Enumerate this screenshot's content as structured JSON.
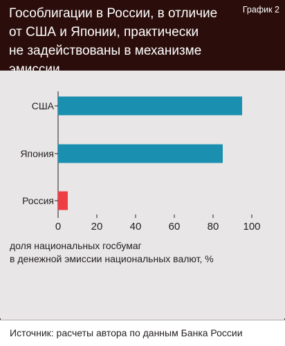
{
  "header": {
    "title_lines": [
      "Гособлигации в России, в отличие",
      "от США и Японии, практически",
      "не задействованы в механизме эмиссии"
    ],
    "label": "График 2"
  },
  "chart_data": {
    "type": "bar",
    "orientation": "horizontal",
    "categories": [
      "США",
      "Япония",
      "Россия"
    ],
    "values": [
      95,
      85,
      5
    ],
    "bar_colors": [
      "#1a8fb0",
      "#1a8fb0",
      "#ee3e43"
    ],
    "xlim": [
      0,
      100
    ],
    "xticks": [
      0,
      20,
      40,
      60,
      80,
      100
    ],
    "xlabel_lines": [
      "доля национальных госбумаг",
      "в денежной эмиссии национальных валют, %"
    ],
    "grid": false
  },
  "footer": {
    "source": "Источник: расчеты автора по данным Банка России"
  }
}
